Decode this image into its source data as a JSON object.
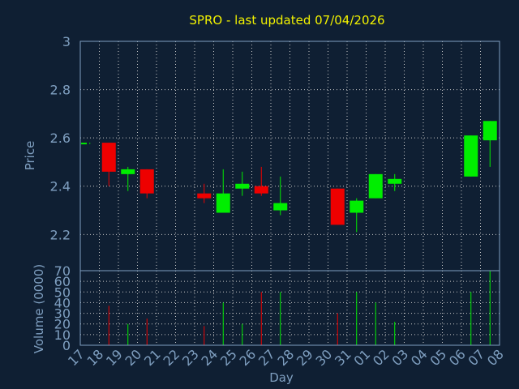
{
  "chart_data": {
    "type": "candlestick",
    "title": "SPRO - last updated 07/04/2026",
    "xlabel": "Day",
    "ylabel": "Price",
    "volume_ylabel": "Volume (0000)",
    "ylim": [
      2.05,
      3.0
    ],
    "yticks": [
      "2.2",
      "2.4",
      "2.6",
      "2.8",
      "3"
    ],
    "volume_ylim": [
      0,
      70
    ],
    "volume_yticks": [
      "0",
      "10",
      "20",
      "30",
      "40",
      "50",
      "60",
      "70"
    ],
    "grid": true,
    "x_tick_labels": [
      "17",
      "18",
      "19",
      "20",
      "21",
      "22",
      "23",
      "24",
      "25",
      "26",
      "27",
      "28",
      "29",
      "30",
      "31",
      "01",
      "02",
      "03",
      "04",
      "05",
      "06",
      "07",
      "08"
    ],
    "up_color": "#00ee00",
    "down_color": "#ee0000",
    "candles": [
      {
        "day": "17",
        "open": 2.575,
        "high": 2.58,
        "low": 2.575,
        "close": 2.58,
        "volume": 0
      },
      {
        "day": "18",
        "open": 2.58,
        "high": 2.58,
        "low": 2.4,
        "close": 2.46,
        "volume": 37
      },
      {
        "day": "19",
        "open": 2.45,
        "high": 2.48,
        "low": 2.38,
        "close": 2.47,
        "volume": 20
      },
      {
        "day": "20",
        "open": 2.47,
        "high": 2.47,
        "low": 2.35,
        "close": 2.37,
        "volume": 25
      },
      {
        "day": "23",
        "open": 2.37,
        "high": 2.41,
        "low": 2.33,
        "close": 2.35,
        "volume": 18
      },
      {
        "day": "24",
        "open": 2.29,
        "high": 2.47,
        "low": 2.29,
        "close": 2.37,
        "volume": 40
      },
      {
        "day": "25",
        "open": 2.39,
        "high": 2.46,
        "low": 2.36,
        "close": 2.41,
        "volume": 20
      },
      {
        "day": "26",
        "open": 2.4,
        "high": 2.48,
        "low": 2.36,
        "close": 2.37,
        "volume": 50
      },
      {
        "day": "27",
        "open": 2.3,
        "high": 2.44,
        "low": 2.28,
        "close": 2.33,
        "volume": 50
      },
      {
        "day": "30",
        "open": 2.39,
        "high": 2.39,
        "low": 2.24,
        "close": 2.24,
        "volume": 30
      },
      {
        "day": "31",
        "open": 2.29,
        "high": 2.35,
        "low": 2.21,
        "close": 2.34,
        "volume": 50
      },
      {
        "day": "01",
        "open": 2.35,
        "high": 2.45,
        "low": 2.35,
        "close": 2.45,
        "volume": 40
      },
      {
        "day": "02",
        "open": 2.41,
        "high": 2.45,
        "low": 2.38,
        "close": 2.43,
        "volume": 22
      },
      {
        "day": "06",
        "open": 2.44,
        "high": 2.61,
        "low": 2.44,
        "close": 2.61,
        "volume": 50
      },
      {
        "day": "07",
        "open": 2.59,
        "high": 2.67,
        "low": 2.48,
        "close": 2.67,
        "volume": 70
      }
    ]
  }
}
